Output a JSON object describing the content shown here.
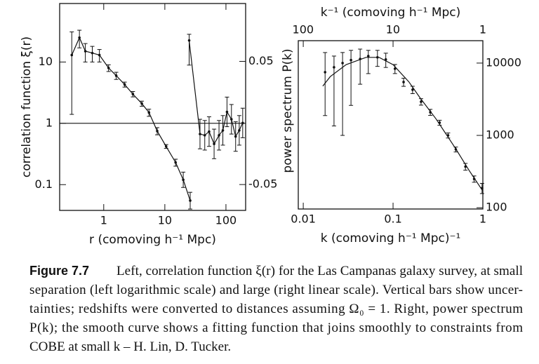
{
  "chart_data": [
    {
      "type": "line",
      "xscale": "log",
      "yscale": "log",
      "y2scale": "linear",
      "yaxis_side": "left",
      "xlabel": "r (comoving h⁻¹ Mpc)",
      "ylabel": "correlation function ξ(r)",
      "xlim": [
        0.19,
        210
      ],
      "xticks": [
        1,
        10,
        100
      ],
      "ylim": [
        0.038,
        90
      ],
      "yticks": [
        0.1,
        1,
        10
      ],
      "y2lim": [
        -0.071,
        0.097
      ],
      "y2ticks": [
        -0.05,
        0.05
      ],
      "hline": 1,
      "series": [
        {
          "axis": "y",
          "color": "#111",
          "markers": true,
          "x": [
            0.3,
            0.4,
            0.5,
            0.65,
            0.85,
            1.2,
            1.6,
            2.2,
            3,
            4.2,
            5.5,
            7.5,
            10.5,
            15,
            20,
            26
          ],
          "values": [
            13,
            25,
            15,
            14,
            13,
            8,
            6,
            4.3,
            3,
            2.1,
            1.5,
            0.75,
            0.42,
            0.23,
            0.12,
            0.055
          ],
          "errors_minus": [
            11.6,
            8,
            5,
            4,
            3,
            1,
            0.8,
            0.4,
            0.3,
            0.2,
            0.2,
            0.1,
            0.03,
            0.03,
            0.03,
            0.015
          ],
          "errors_plus": [
            18,
            8,
            5,
            4,
            3,
            1,
            0.8,
            0.4,
            0.3,
            0.2,
            0.2,
            0.1,
            0.03,
            0.03,
            0.04,
            0.02
          ]
        },
        {
          "axis": "y2",
          "color": "#111",
          "markers": true,
          "x": [
            25,
            37.6,
            45,
            53,
            64,
            77,
            89,
            104,
            123,
            144,
            165,
            188
          ],
          "values": [
            0.067,
            -0.009,
            -0.01,
            -0.007,
            -0.017,
            -0.01,
            -0.006,
            0.009,
            0.003,
            -0.011,
            -0.006,
            0.0
          ],
          "errors_minus": [
            0.02,
            0.012,
            0.012,
            0.012,
            0.012,
            0.012,
            0.012,
            0.012,
            0.012,
            0.012,
            0.012,
            0.012
          ],
          "errors_plus": [
            0.005,
            0.012,
            0.012,
            0.012,
            0.012,
            0.012,
            0.012,
            0.012,
            0.012,
            0.012,
            0.012,
            0.012
          ]
        }
      ]
    },
    {
      "type": "line",
      "xscale": "log",
      "yscale": "log",
      "x2scale": "log",
      "yaxis_side": "right",
      "xlabel": "k (comoving h⁻¹ Mpc)⁻¹",
      "ylabel": "power spectrum P(k)",
      "x2label": "k⁻¹ (comoving h⁻¹ Mpc)",
      "xlim": [
        0.0088,
        1.0
      ],
      "xticks": [
        0.01,
        0.1,
        1
      ],
      "x2lim": [
        113,
        1.0
      ],
      "x2ticks": [
        100,
        10,
        1
      ],
      "ylim": [
        96,
        20400
      ],
      "yticks": [
        100,
        1000,
        10000
      ],
      "series": [
        {
          "axis": "y",
          "color": "#111",
          "markers": true,
          "connect": false,
          "x": [
            0.0175,
            0.022,
            0.0274,
            0.034,
            0.043,
            0.053,
            0.067,
            0.083,
            0.105,
            0.131,
            0.165,
            0.205,
            0.26,
            0.33,
            0.41,
            0.5,
            0.64,
            0.8,
            0.98
          ],
          "values": [
            7480,
            8750,
            10000,
            11000,
            11400,
            12500,
            12000,
            11200,
            8360,
            5470,
            4280,
            2920,
            2090,
            1500,
            1000,
            640,
            370,
            250,
            187
          ],
          "errors_minus": [
            5600,
            7400,
            9000,
            8400,
            6300,
            5350,
            3000,
            2500,
            1200,
            700,
            500,
            300,
            200,
            120,
            80,
            50,
            40,
            25,
            30
          ],
          "errors_plus": [
            6500,
            3750,
            4000,
            4000,
            4200,
            2500,
            3000,
            2500,
            1200,
            700,
            500,
            300,
            200,
            120,
            80,
            50,
            40,
            25,
            30
          ]
        },
        {
          "axis": "y",
          "color": "#111",
          "markers": false,
          "x": [
            0.0165,
            0.02,
            0.03,
            0.05,
            0.07,
            0.1,
            0.15,
            0.2,
            0.3,
            0.5,
            0.7,
            1.0
          ],
          "values": [
            4800,
            6500,
            9500,
            12000,
            12000,
            9500,
            5500,
            3300,
            1700,
            650,
            330,
            170
          ]
        }
      ]
    }
  ],
  "caption": {
    "label": "Figure 7.7",
    "lines": [
      "Left, correlation function ξ(r) for the Las Campanas galaxy survey, at small",
      "separation (left logarithmic scale) and large (right linear scale). Vertical bars show uncer-",
      "tainties; redshifts were converted to distances assuming Ω₀ = 1. Right, power spectrum",
      "P(k); the smooth curve shows a fitting function that joins smoothly to constraints from",
      "COBE at small k – H. Lin, D. Tucker."
    ]
  }
}
